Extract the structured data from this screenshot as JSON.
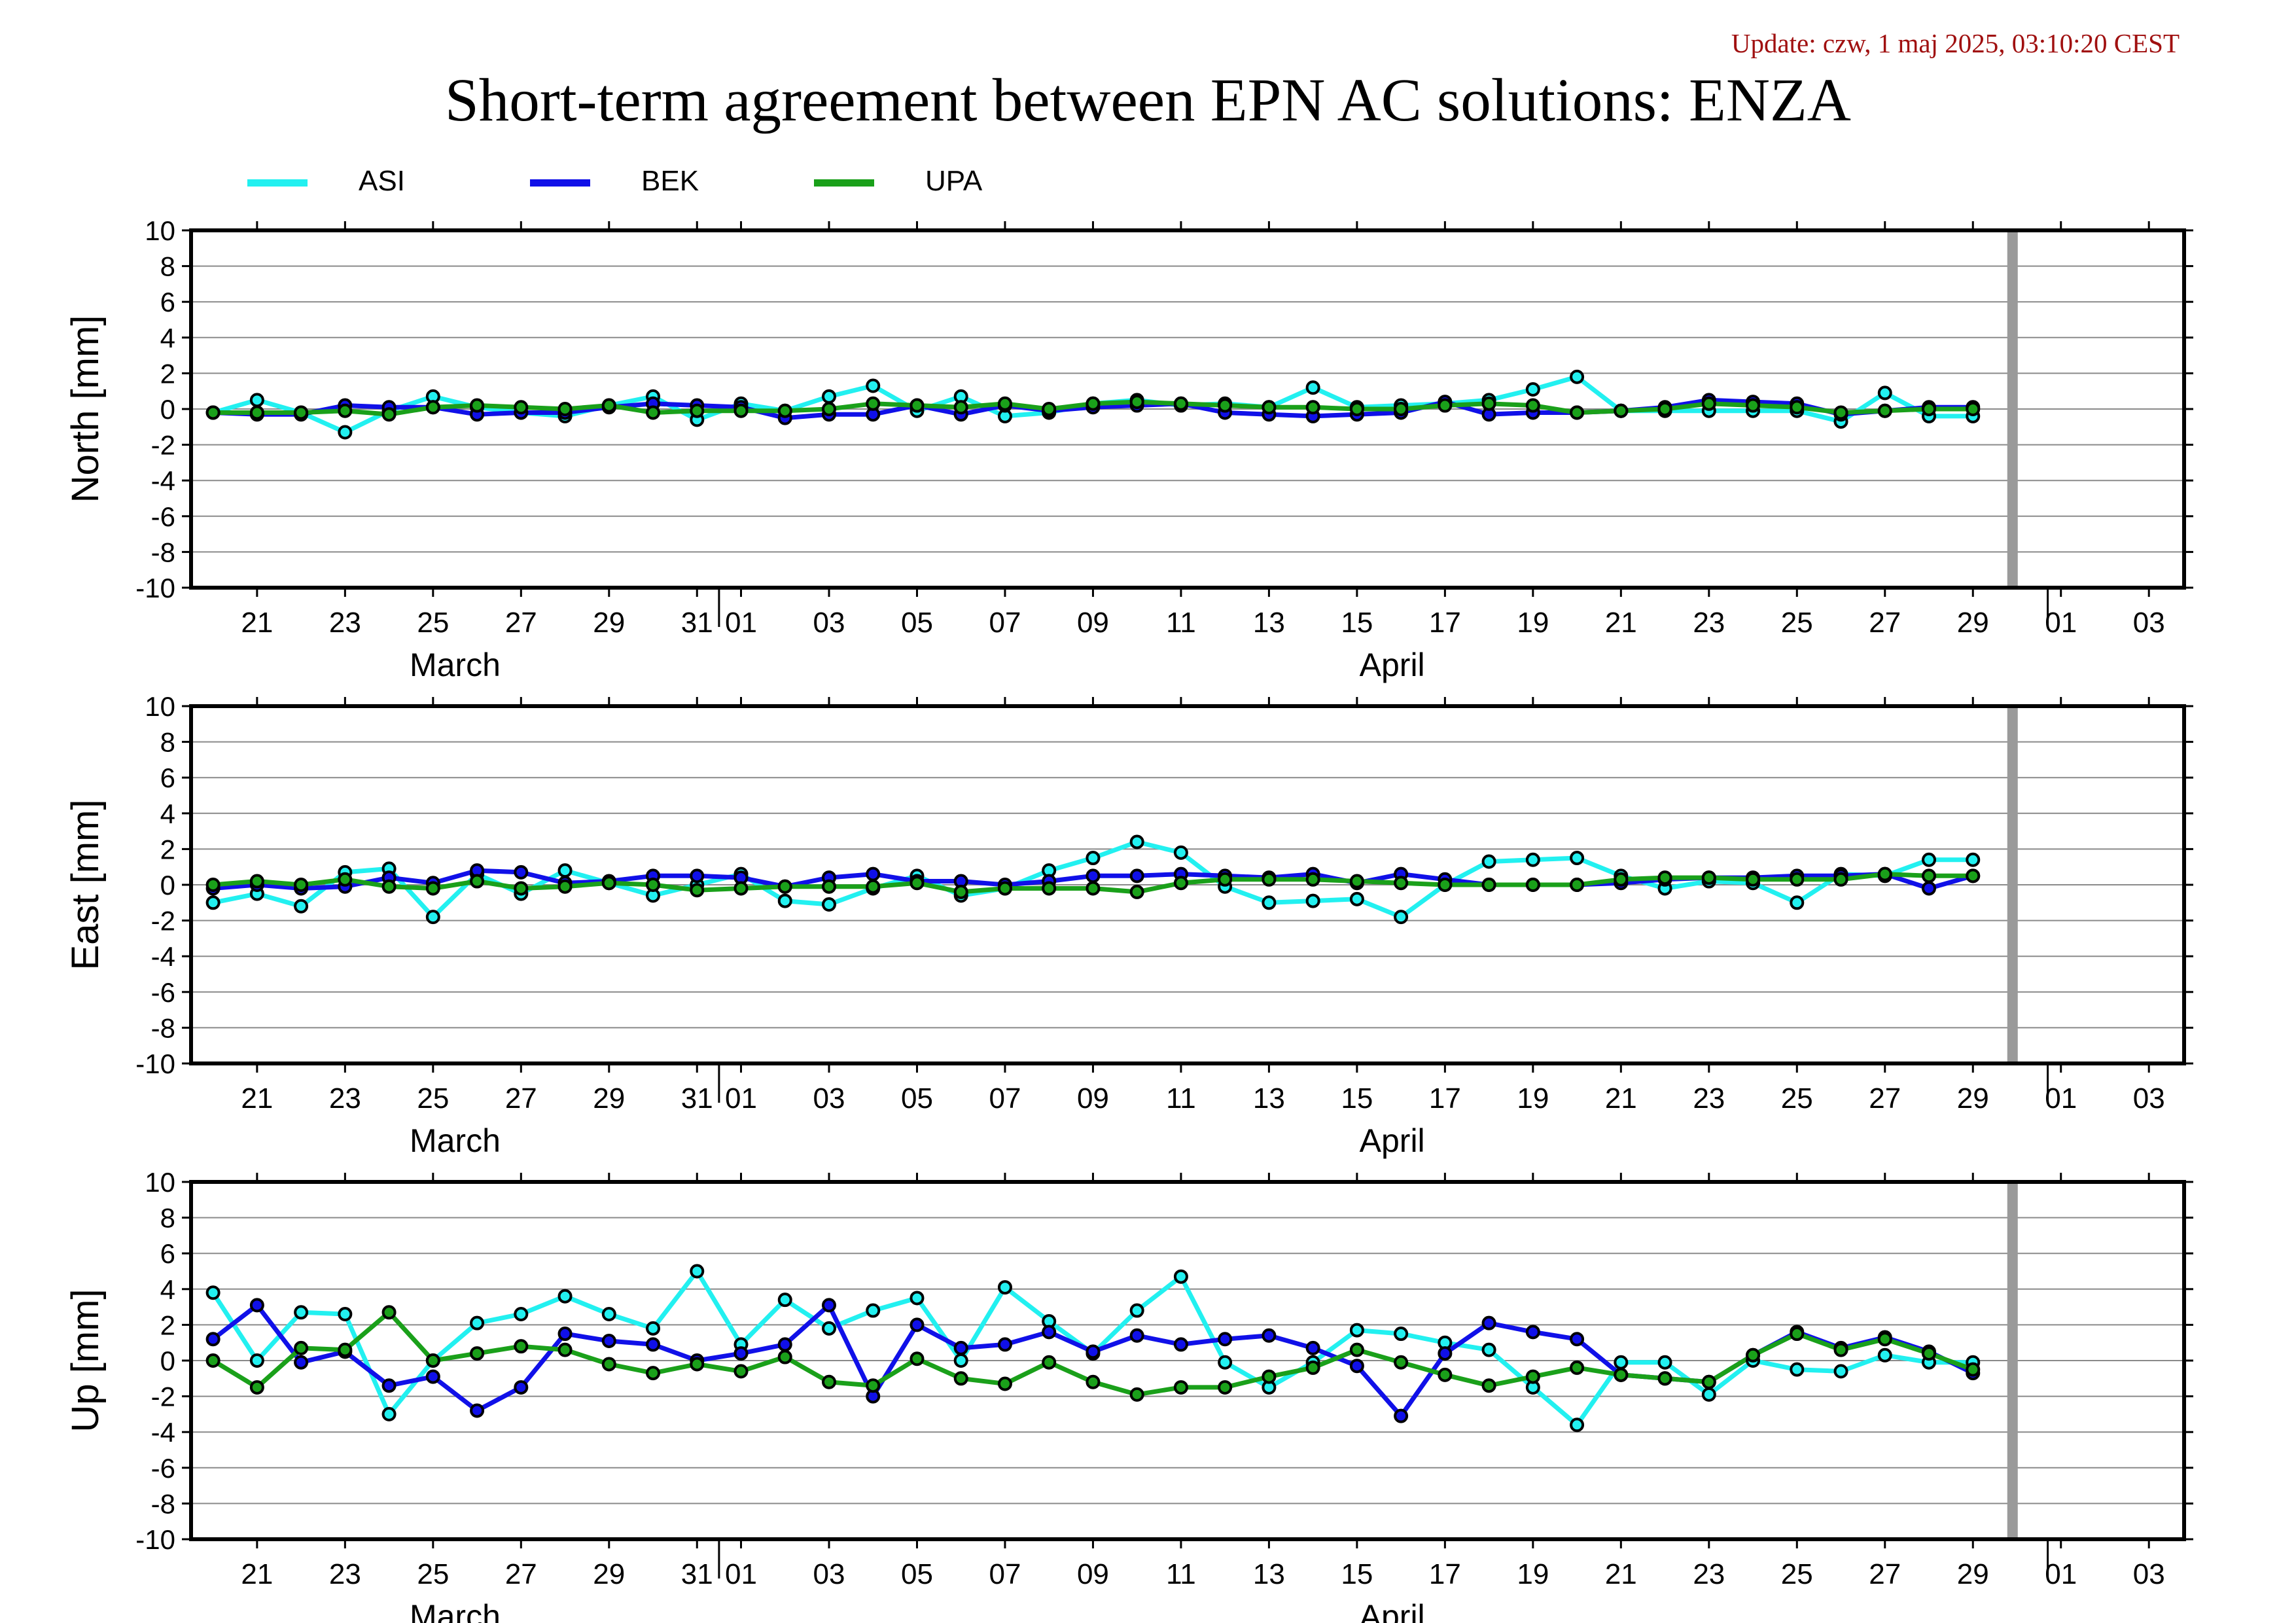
{
  "update_text": "Update: czw, 1 maj 2025, 03:10:20 CEST",
  "title": "Short-term agreement between EPN AC solutions: ENZA",
  "legend": [
    {
      "name": "ASI",
      "color": "#22f0f0"
    },
    {
      "name": "BEK",
      "color": "#1010e8"
    },
    {
      "name": "UPA",
      "color": "#1aa01a"
    }
  ],
  "chart_data": {
    "type": "line",
    "x_axis": {
      "range_days": [
        -0.5,
        44.8
      ],
      "day_zero": "March 20",
      "tick_labels": [
        "21",
        "23",
        "25",
        "27",
        "29",
        "31",
        "01",
        "03",
        "05",
        "07",
        "09",
        "11",
        "13",
        "15",
        "17",
        "19",
        "21",
        "23",
        "25",
        "27",
        "29",
        "01",
        "03"
      ],
      "tick_days": [
        1,
        3,
        5,
        7,
        9,
        11,
        12,
        14,
        16,
        18,
        20,
        22,
        24,
        26,
        28,
        30,
        32,
        34,
        36,
        38,
        40,
        42,
        44
      ],
      "month_labels": [
        {
          "text": "March",
          "day": 5.5
        },
        {
          "text": "April",
          "day": 26.8
        }
      ],
      "month_boundaries": [
        11.5,
        41.7
      ],
      "current_day_marker": 40.9
    },
    "panels": [
      {
        "ylabel": "North [mm]",
        "ylim": [
          -10,
          10
        ],
        "y_ticks": [
          "10",
          "8",
          "6",
          "4",
          "2",
          "0",
          "-2",
          "-4",
          "-6",
          "-8",
          "-10"
        ],
        "series": [
          {
            "name": "ASI",
            "x": [
              0,
              1,
              2,
              3,
              4,
              5,
              6,
              7,
              8,
              9,
              10,
              11,
              12,
              13,
              14,
              15,
              16,
              17,
              18,
              19,
              20,
              21,
              22,
              23,
              24,
              25,
              26,
              27,
              28,
              29,
              30,
              31,
              32,
              33,
              34,
              35,
              36,
              37,
              38,
              39,
              40
            ],
            "y": [
              -0.2,
              0.5,
              -0.2,
              -1.3,
              -0.1,
              0.7,
              0.1,
              -0.2,
              -0.4,
              0.2,
              0.7,
              -0.6,
              0.3,
              -0.1,
              0.7,
              1.3,
              -0.1,
              0.7,
              -0.4,
              -0.2,
              0.3,
              0.5,
              0.2,
              0.3,
              0.1,
              1.2,
              0.1,
              0.2,
              0.3,
              0.5,
              1.1,
              1.8,
              -0.1,
              -0.1,
              -0.1,
              -0.1,
              -0.1,
              -0.7,
              0.9,
              -0.4,
              -0.4
            ]
          },
          {
            "name": "BEK",
            "x": [
              0,
              1,
              2,
              3,
              4,
              5,
              6,
              7,
              8,
              9,
              10,
              11,
              12,
              13,
              14,
              15,
              16,
              17,
              18,
              19,
              20,
              21,
              22,
              23,
              24,
              25,
              26,
              27,
              28,
              29,
              30,
              31,
              32,
              33,
              34,
              35,
              36,
              37,
              38,
              39,
              40
            ],
            "y": [
              -0.2,
              -0.3,
              -0.3,
              0.2,
              0.1,
              0.1,
              -0.3,
              -0.2,
              -0.2,
              0.1,
              0.3,
              0.2,
              0.1,
              -0.5,
              -0.3,
              -0.3,
              0.2,
              -0.3,
              0.2,
              -0.1,
              0.1,
              0.2,
              0.3,
              -0.2,
              -0.3,
              -0.4,
              -0.3,
              -0.2,
              0.4,
              -0.3,
              -0.2,
              -0.2,
              -0.1,
              0.1,
              0.5,
              0.4,
              0.3,
              -0.3,
              -0.1,
              0.1,
              0.1
            ]
          },
          {
            "name": "UPA",
            "x": [
              0,
              1,
              2,
              3,
              4,
              5,
              6,
              7,
              8,
              9,
              10,
              11,
              12,
              13,
              14,
              15,
              16,
              17,
              18,
              19,
              20,
              21,
              22,
              23,
              24,
              25,
              26,
              27,
              28,
              29,
              30,
              31,
              32,
              33,
              34,
              35,
              36,
              37,
              38,
              39,
              40
            ],
            "y": [
              -0.2,
              -0.2,
              -0.2,
              -0.1,
              -0.3,
              0.1,
              0.2,
              0.1,
              0.0,
              0.2,
              -0.2,
              -0.1,
              -0.1,
              -0.1,
              0.0,
              0.3,
              0.2,
              0.1,
              0.3,
              0.0,
              0.3,
              0.4,
              0.3,
              0.2,
              0.1,
              0.1,
              0.0,
              0.0,
              0.2,
              0.3,
              0.2,
              -0.2,
              -0.1,
              0.0,
              0.3,
              0.2,
              0.1,
              -0.2,
              -0.1,
              0.0,
              0.0
            ]
          }
        ]
      },
      {
        "ylabel": "East [mm]",
        "ylim": [
          -10,
          10
        ],
        "y_ticks": [
          "10",
          "8",
          "6",
          "4",
          "2",
          "0",
          "-2",
          "-4",
          "-6",
          "-8",
          "-10"
        ],
        "series": [
          {
            "name": "ASI",
            "x": [
              0,
              1,
              2,
              3,
              4,
              5,
              6,
              7,
              8,
              9,
              10,
              11,
              12,
              13,
              14,
              15,
              16,
              17,
              18,
              19,
              20,
              21,
              22,
              23,
              24,
              25,
              26,
              27,
              28,
              29,
              30,
              31,
              32,
              33,
              34,
              35,
              36,
              37,
              38,
              39,
              40
            ],
            "y": [
              -1.0,
              -0.5,
              -1.2,
              0.7,
              0.9,
              -1.8,
              0.6,
              -0.5,
              0.8,
              0.1,
              -0.6,
              0.0,
              0.6,
              -0.9,
              -1.1,
              -0.2,
              0.5,
              -0.6,
              -0.2,
              0.8,
              1.5,
              2.4,
              1.8,
              -0.1,
              -1.0,
              -0.9,
              -0.8,
              -1.8,
              0.0,
              1.3,
              1.4,
              1.5,
              0.5,
              -0.2,
              0.2,
              0.1,
              -1.0,
              0.6,
              0.5,
              1.4,
              1.4
            ]
          },
          {
            "name": "BEK",
            "x": [
              0,
              1,
              2,
              3,
              4,
              5,
              6,
              7,
              8,
              9,
              10,
              11,
              12,
              13,
              14,
              15,
              16,
              17,
              18,
              19,
              20,
              21,
              22,
              23,
              24,
              25,
              26,
              27,
              28,
              29,
              30,
              31,
              32,
              33,
              34,
              35,
              36,
              37,
              38,
              39,
              40
            ],
            "y": [
              -0.2,
              0.0,
              -0.2,
              -0.1,
              0.4,
              0.1,
              0.8,
              0.7,
              0.1,
              0.2,
              0.5,
              0.5,
              0.4,
              -0.1,
              0.4,
              0.6,
              0.2,
              0.2,
              0.0,
              0.2,
              0.5,
              0.5,
              0.6,
              0.5,
              0.4,
              0.6,
              0.1,
              0.6,
              0.3,
              0.0,
              0.0,
              0.0,
              0.1,
              0.3,
              0.4,
              0.4,
              0.5,
              0.5,
              0.6,
              -0.2,
              0.5
            ]
          },
          {
            "name": "UPA",
            "x": [
              0,
              1,
              2,
              3,
              4,
              5,
              6,
              7,
              8,
              9,
              10,
              11,
              12,
              13,
              14,
              15,
              16,
              17,
              18,
              19,
              20,
              21,
              22,
              23,
              24,
              25,
              26,
              27,
              28,
              29,
              30,
              31,
              32,
              33,
              34,
              35,
              36,
              37,
              38,
              39,
              40
            ],
            "y": [
              0.0,
              0.2,
              0.0,
              0.3,
              -0.1,
              -0.2,
              0.2,
              -0.2,
              -0.1,
              0.1,
              0.0,
              -0.3,
              -0.2,
              -0.1,
              -0.1,
              -0.1,
              0.1,
              -0.4,
              -0.2,
              -0.2,
              -0.2,
              -0.4,
              0.1,
              0.3,
              0.3,
              0.3,
              0.2,
              0.1,
              0.0,
              0.0,
              0.0,
              0.0,
              0.3,
              0.4,
              0.4,
              0.3,
              0.3,
              0.3,
              0.6,
              0.5,
              0.5
            ]
          }
        ]
      },
      {
        "ylabel": "Up [mm]",
        "ylim": [
          -10,
          10
        ],
        "y_ticks": [
          "10",
          "8",
          "6",
          "4",
          "2",
          "0",
          "-2",
          "-4",
          "-6",
          "-8",
          "-10"
        ],
        "series": [
          {
            "name": "ASI",
            "x": [
              0,
              1,
              2,
              3,
              4,
              5,
              6,
              7,
              8,
              9,
              10,
              11,
              12,
              13,
              14,
              15,
              16,
              17,
              18,
              19,
              20,
              21,
              22,
              23,
              24,
              25,
              26,
              27,
              28,
              29,
              30,
              31,
              32,
              33,
              34,
              35,
              36,
              37,
              38,
              39,
              40
            ],
            "y": [
              3.8,
              0.0,
              2.7,
              2.6,
              -3.0,
              0.0,
              2.1,
              2.6,
              3.6,
              2.6,
              1.8,
              5.0,
              0.9,
              3.4,
              1.8,
              2.8,
              3.5,
              0.0,
              4.1,
              2.2,
              0.4,
              2.8,
              4.7,
              -0.1,
              -1.5,
              -0.1,
              1.7,
              1.5,
              1.0,
              0.6,
              -1.5,
              -3.6,
              -0.1,
              -0.1,
              -1.9,
              0.0,
              -0.5,
              -0.6,
              0.3,
              -0.1,
              -0.1
            ]
          },
          {
            "name": "BEK",
            "x": [
              0,
              1,
              2,
              3,
              4,
              5,
              6,
              7,
              8,
              9,
              10,
              11,
              12,
              13,
              14,
              15,
              16,
              17,
              18,
              19,
              20,
              21,
              22,
              23,
              24,
              25,
              26,
              27,
              28,
              29,
              30,
              31,
              32,
              33,
              34,
              35,
              36,
              37,
              38,
              39,
              40
            ],
            "y": [
              1.2,
              3.1,
              -0.1,
              0.5,
              -1.4,
              -0.9,
              -2.8,
              -1.5,
              1.5,
              1.1,
              0.9,
              0.0,
              0.4,
              0.9,
              3.1,
              -2.0,
              2.0,
              0.7,
              0.9,
              1.6,
              0.5,
              1.4,
              0.9,
              1.2,
              1.4,
              0.7,
              -0.3,
              -3.1,
              0.4,
              2.1,
              1.6,
              1.2,
              -0.8,
              -1.0,
              -1.2,
              0.3,
              1.6,
              0.7,
              1.3,
              0.5,
              -0.7
            ]
          },
          {
            "name": "UPA",
            "x": [
              0,
              1,
              2,
              3,
              4,
              5,
              6,
              7,
              8,
              9,
              10,
              11,
              12,
              13,
              14,
              15,
              16,
              17,
              18,
              19,
              20,
              21,
              22,
              23,
              24,
              25,
              26,
              27,
              28,
              29,
              30,
              31,
              32,
              33,
              34,
              35,
              36,
              37,
              38,
              39,
              40
            ],
            "y": [
              0.0,
              -1.5,
              0.7,
              0.6,
              2.7,
              0.0,
              0.4,
              0.8,
              0.6,
              -0.2,
              -0.7,
              -0.2,
              -0.6,
              0.2,
              -1.2,
              -1.4,
              0.1,
              -1.0,
              -1.3,
              -0.1,
              -1.2,
              -1.9,
              -1.5,
              -1.5,
              -0.9,
              -0.4,
              0.6,
              -0.1,
              -0.8,
              -1.4,
              -0.9,
              -0.4,
              -0.8,
              -1.0,
              -1.2,
              0.3,
              1.5,
              0.6,
              1.2,
              0.4,
              -0.5
            ]
          }
        ]
      }
    ]
  }
}
